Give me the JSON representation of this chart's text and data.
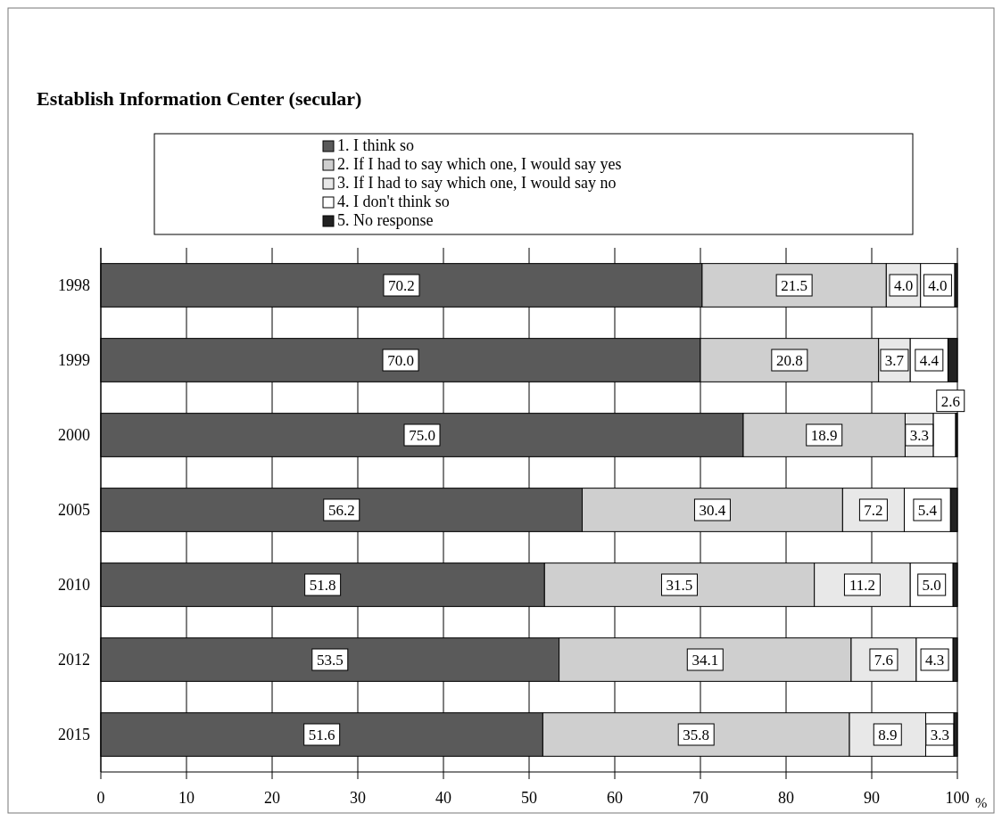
{
  "chart_data": {
    "type": "bar",
    "orientation": "horizontal",
    "stacked": true,
    "title": "Establish Information Center (secular)",
    "xlabel": "%",
    "categories": [
      "1998",
      "1999",
      "2000",
      "2005",
      "2010",
      "2012",
      "2015"
    ],
    "series": [
      {
        "name": "1. I think so",
        "color": "#5a5a5a",
        "values": [
          70.2,
          70.0,
          75.0,
          56.2,
          51.8,
          53.5,
          51.6
        ],
        "value_labels": [
          "70.2",
          "70.0",
          "75.0",
          "56.2",
          "51.8",
          "53.5",
          "51.6"
        ]
      },
      {
        "name": "2. If I had to say which one, I would say yes",
        "color": "#cfcfcf",
        "values": [
          21.5,
          20.8,
          18.9,
          30.4,
          31.5,
          34.1,
          35.8
        ],
        "value_labels": [
          "21.5",
          "20.8",
          "18.9",
          "30.4",
          "31.5",
          "34.1",
          "35.8"
        ]
      },
      {
        "name": "3. If I had to say which one, I would say no",
        "color": "#e8e8e8",
        "values": [
          4.0,
          3.7,
          3.3,
          7.2,
          11.2,
          7.6,
          8.9
        ],
        "value_labels": [
          "4.0",
          "3.7",
          "3.3",
          "7.2",
          "11.2",
          "7.6",
          "8.9"
        ]
      },
      {
        "name": "4. I don't think so",
        "color": "#ffffff",
        "values": [
          4.0,
          4.4,
          2.6,
          5.4,
          5.0,
          4.3,
          3.3
        ],
        "value_labels": [
          "4.0",
          "4.4",
          "2.6",
          "5.4",
          "5.0",
          "4.3",
          "3.3"
        ]
      },
      {
        "name": "5. No response",
        "color": "#222222",
        "values": [
          0.3,
          1.1,
          0.2,
          0.8,
          0.5,
          0.5,
          0.4
        ],
        "value_labels": [
          null,
          null,
          null,
          null,
          null,
          null,
          null
        ]
      }
    ],
    "xlim": [
      0,
      100
    ],
    "xticks": [
      0,
      10,
      20,
      30,
      40,
      50,
      60,
      70,
      80,
      90,
      100
    ],
    "grid": "x",
    "legend": "top"
  }
}
